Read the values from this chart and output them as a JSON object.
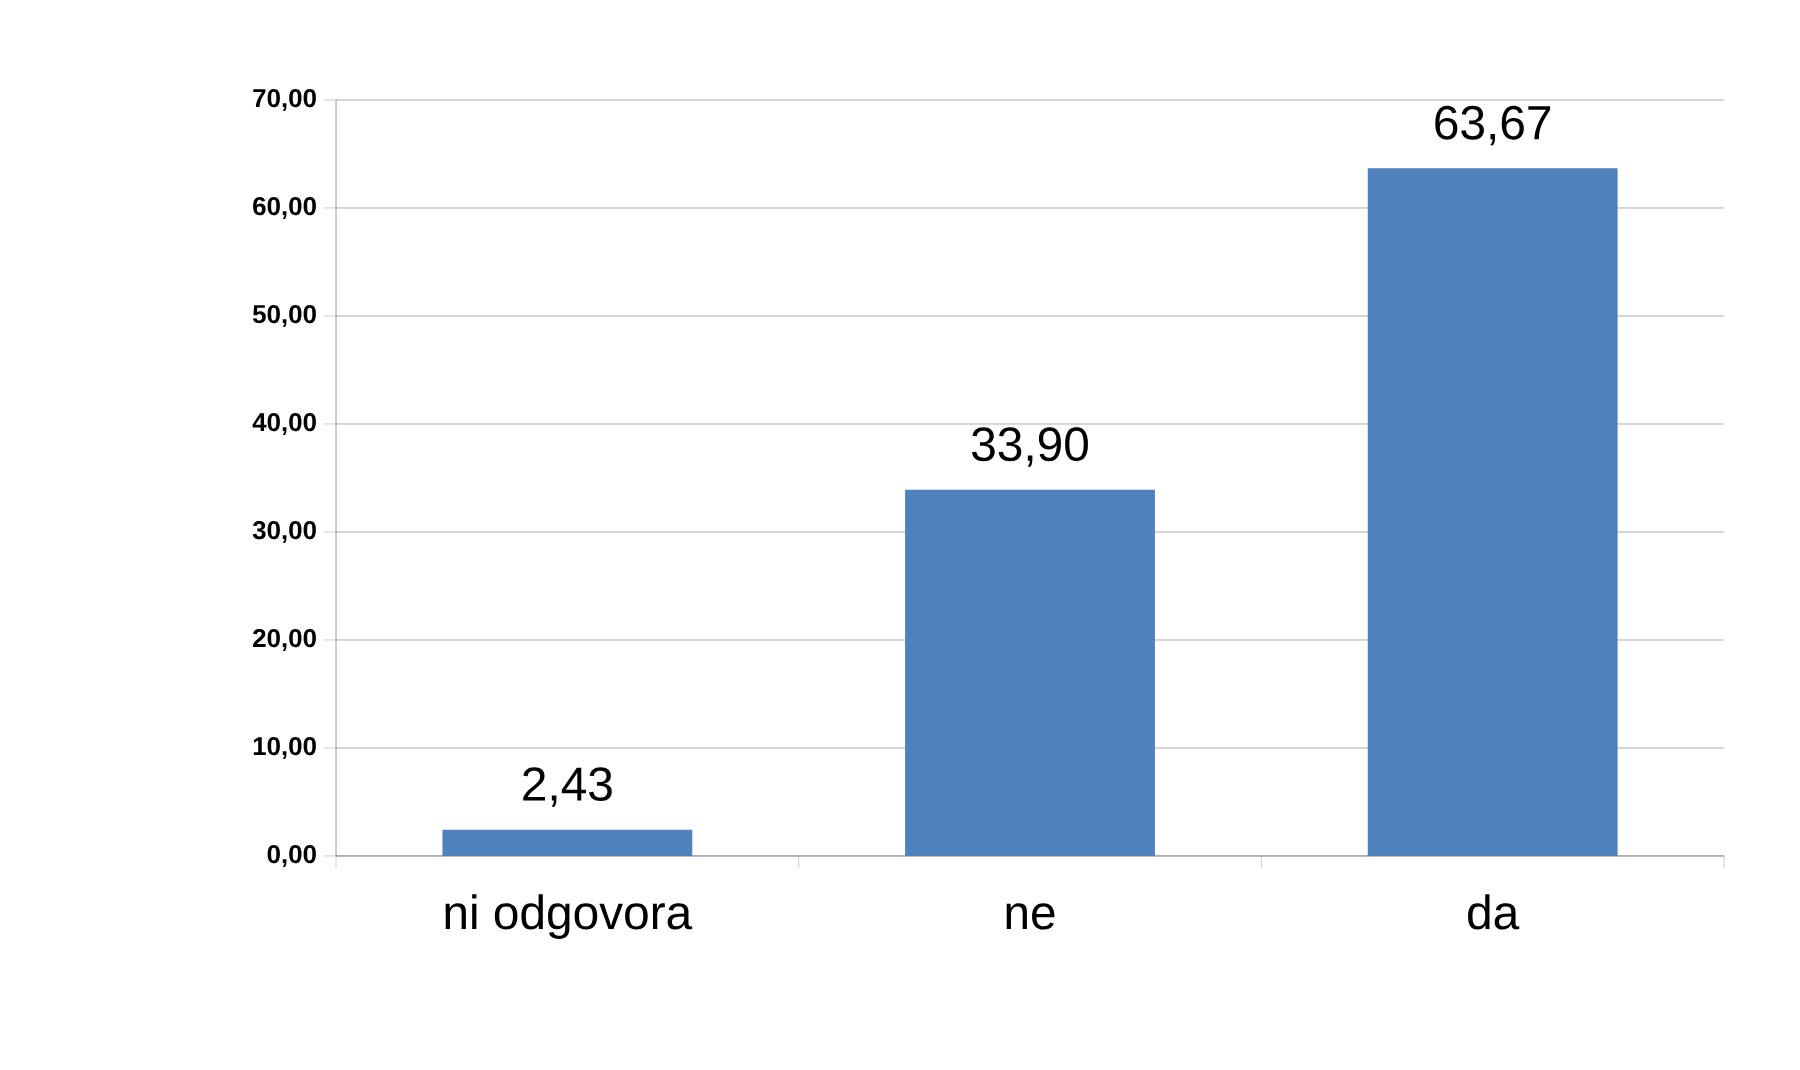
{
  "chart_data": {
    "type": "bar",
    "categories": [
      "ni odgovora",
      "ne",
      "da"
    ],
    "values": [
      2.43,
      33.9,
      63.67
    ],
    "value_labels": [
      "2,43",
      "33,90",
      "63,67"
    ],
    "color": "#4f81bd",
    "ylim": [
      0,
      70
    ],
    "yticks": [
      {
        "value": 0,
        "label": "0,00"
      },
      {
        "value": 10,
        "label": "10,00"
      },
      {
        "value": 20,
        "label": "20,00"
      },
      {
        "value": 30,
        "label": "30,00"
      },
      {
        "value": 40,
        "label": "40,00"
      },
      {
        "value": 50,
        "label": "50,00"
      },
      {
        "value": 60,
        "label": "60,00"
      },
      {
        "value": 70,
        "label": "70,00"
      }
    ],
    "grid": "y"
  }
}
